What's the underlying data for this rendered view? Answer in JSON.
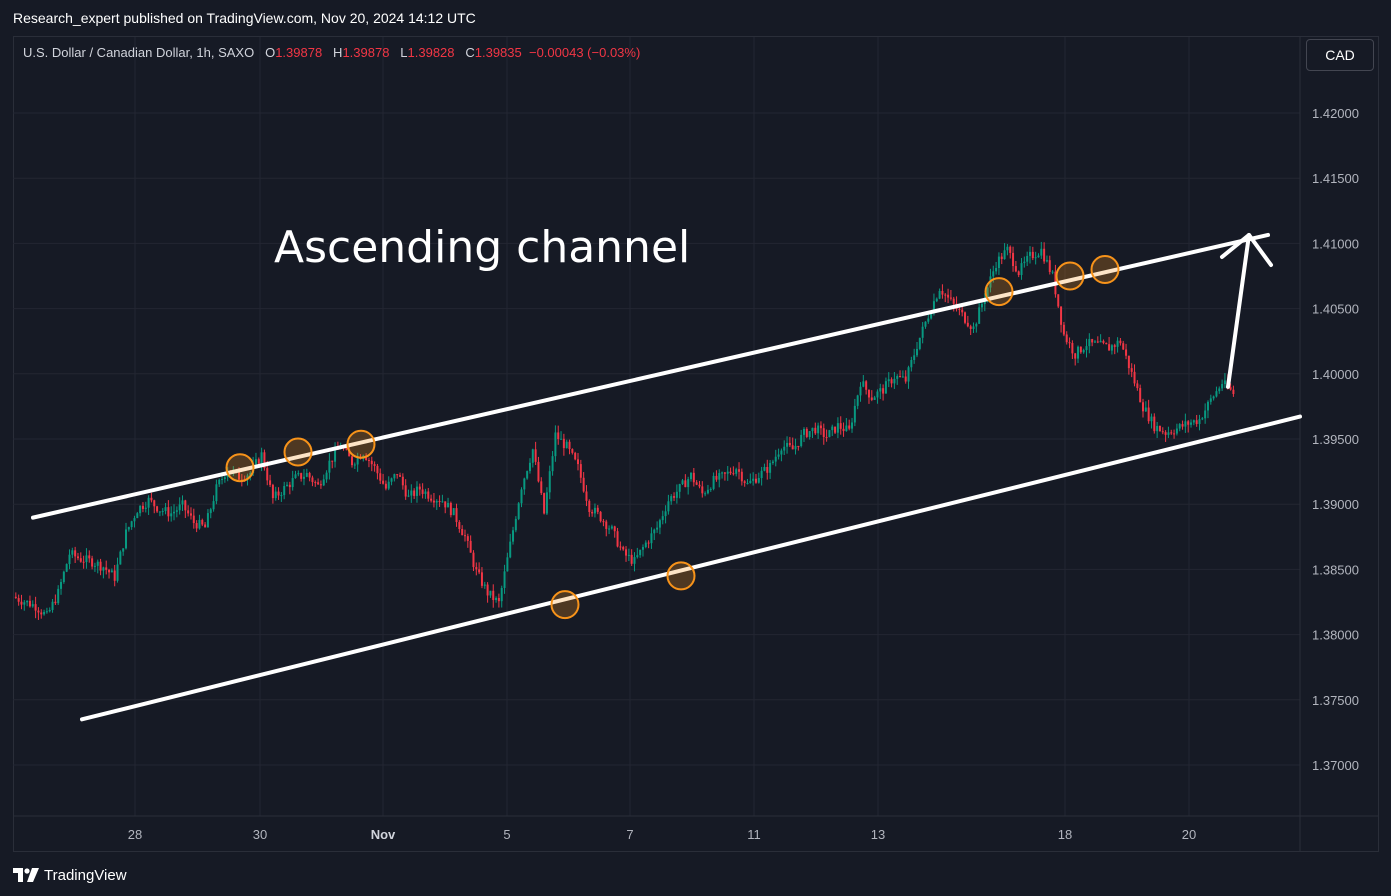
{
  "header": {
    "published": "Research_expert published on TradingView.com, Nov 20, 2024 14:12 UTC"
  },
  "legend": {
    "symbol": "U.S. Dollar / Canadian Dollar, 1h, SAXO",
    "open_label": "O",
    "open": "1.39878",
    "high_label": "H",
    "high": "1.39878",
    "low_label": "L",
    "low": "1.39828",
    "close_label": "C",
    "close": "1.39835",
    "change": "−0.00043 (−0.03%)"
  },
  "currency_button": "CAD",
  "footer": {
    "brand": "TradingView"
  },
  "colors": {
    "up": "#089981",
    "down": "#f23645",
    "background": "#161a25",
    "grid": "#232632",
    "circle": "#f7931a"
  },
  "chart_data": {
    "type": "candlestick",
    "title": "U.S. Dollar / Canadian Dollar, 1h, SAXO",
    "ylim": [
      1.3658,
      1.4245
    ],
    "price_ticks": [
      1.42,
      1.415,
      1.41,
      1.405,
      1.4,
      1.395,
      1.39,
      1.385,
      1.38,
      1.375,
      1.37
    ],
    "x_ticks": [
      "28",
      "30",
      "Nov",
      "5",
      "7",
      "11",
      "13",
      "18",
      "20"
    ],
    "grid": true,
    "price_path": [
      [
        0,
        1.3829
      ],
      [
        2,
        1.3822
      ],
      [
        3,
        1.3814
      ],
      [
        4,
        1.3832
      ],
      [
        5,
        1.3862
      ],
      [
        6,
        1.3858
      ],
      [
        7,
        1.3856
      ],
      [
        8,
        1.3852
      ],
      [
        9,
        1.3844
      ],
      [
        10,
        1.3878
      ],
      [
        11,
        1.3896
      ],
      [
        12,
        1.3903
      ],
      [
        13,
        1.3896
      ],
      [
        14,
        1.3893
      ],
      [
        15,
        1.3899
      ],
      [
        16,
        1.3886
      ],
      [
        17,
        1.3882
      ],
      [
        18,
        1.3912
      ],
      [
        19,
        1.3928
      ],
      [
        20,
        1.3921
      ],
      [
        21,
        1.3924
      ],
      [
        22,
        1.3938
      ],
      [
        23,
        1.3904
      ],
      [
        24,
        1.3912
      ],
      [
        25,
        1.392
      ],
      [
        26,
        1.3923
      ],
      [
        27,
        1.3914
      ],
      [
        28,
        1.3932
      ],
      [
        29,
        1.3945
      ],
      [
        30,
        1.3932
      ],
      [
        31,
        1.394
      ],
      [
        32,
        1.3928
      ],
      [
        33,
        1.3912
      ],
      [
        34,
        1.3924
      ],
      [
        35,
        1.3905
      ],
      [
        36,
        1.3912
      ],
      [
        37,
        1.3906
      ],
      [
        38,
        1.3903
      ],
      [
        39,
        1.3893
      ],
      [
        40,
        1.3875
      ],
      [
        41,
        1.3848
      ],
      [
        42,
        1.3832
      ],
      [
        43,
        1.3824
      ],
      [
        44,
        1.3869
      ],
      [
        45,
        1.3914
      ],
      [
        46,
        1.3942
      ],
      [
        47,
        1.3893
      ],
      [
        48,
        1.3953
      ],
      [
        49,
        1.3944
      ],
      [
        50,
        1.3928
      ],
      [
        51,
        1.3898
      ],
      [
        52,
        1.389
      ],
      [
        53,
        1.388
      ],
      [
        54,
        1.3862
      ],
      [
        55,
        1.3856
      ],
      [
        56,
        1.387
      ],
      [
        57,
        1.3882
      ],
      [
        58,
        1.3903
      ],
      [
        59,
        1.3912
      ],
      [
        60,
        1.3922
      ],
      [
        61,
        1.3908
      ],
      [
        62,
        1.3918
      ],
      [
        63,
        1.3922
      ],
      [
        64,
        1.3928
      ],
      [
        65,
        1.3915
      ],
      [
        66,
        1.3922
      ],
      [
        67,
        1.3929
      ],
      [
        68,
        1.3945
      ],
      [
        69,
        1.3942
      ],
      [
        70,
        1.3954
      ],
      [
        71,
        1.3958
      ],
      [
        72,
        1.3952
      ],
      [
        73,
        1.396
      ],
      [
        74,
        1.3956
      ],
      [
        75,
        1.3994
      ],
      [
        76,
        1.3982
      ],
      [
        77,
        1.3988
      ],
      [
        78,
        1.3998
      ],
      [
        79,
        1.3995
      ],
      [
        80,
        1.4022
      ],
      [
        81,
        1.4045
      ],
      [
        82,
        1.4066
      ],
      [
        83,
        1.4055
      ],
      [
        84,
        1.4045
      ],
      [
        85,
        1.4035
      ],
      [
        86,
        1.406
      ],
      [
        87,
        1.4085
      ],
      [
        88,
        1.4095
      ],
      [
        89,
        1.4078
      ],
      [
        90,
        1.409
      ],
      [
        91,
        1.4095
      ],
      [
        92,
        1.4075
      ],
      [
        93,
        1.403
      ],
      [
        94,
        1.4015
      ],
      [
        95,
        1.4023
      ],
      [
        96,
        1.4022
      ],
      [
        97,
        1.402
      ],
      [
        98,
        1.4025
      ],
      [
        99,
        1.4
      ],
      [
        100,
        1.3975
      ],
      [
        101,
        1.396
      ],
      [
        102,
        1.3955
      ],
      [
        103,
        1.3958
      ],
      [
        104,
        1.3962
      ],
      [
        105,
        1.3965
      ],
      [
        106,
        1.398
      ],
      [
        107,
        1.3993
      ],
      [
        108,
        1.3985
      ]
    ],
    "annotations": {
      "text": "Ascending channel",
      "upper_channel_line": {
        "from": [
          "Oct 24",
          1.3892
        ],
        "to": [
          "Nov 21",
          1.4108
        ]
      },
      "lower_channel_line": {
        "from": [
          "Oct 25",
          1.3735
        ],
        "to": [
          "Nov 21",
          1.3958
        ]
      },
      "touch_points_upper": [
        [
          "Oct 29",
          1.3928
        ],
        [
          "Oct 30",
          1.394
        ],
        [
          "Nov 1",
          1.3946
        ],
        [
          "Nov 15",
          1.4063
        ],
        [
          "Nov 18",
          1.4075
        ],
        [
          "Nov 18",
          1.408
        ]
      ],
      "touch_points_lower": [
        [
          "Nov 6",
          1.3823
        ],
        [
          "Nov 8",
          1.3845
        ]
      ],
      "arrow": {
        "from": [
          "Nov 20",
          1.399
        ],
        "to": [
          "Nov 21",
          1.4108
        ]
      }
    }
  }
}
